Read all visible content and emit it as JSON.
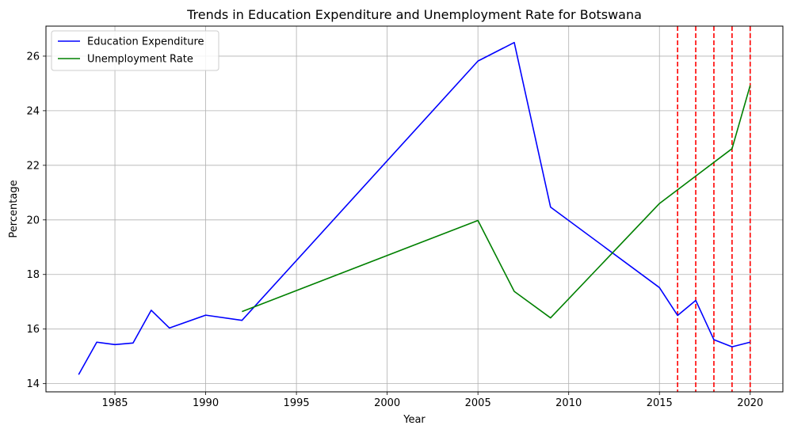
{
  "chart_data": {
    "type": "line",
    "title": "Trends in Education Expenditure and Unemployment Rate for Botswana",
    "xlabel": "Year",
    "ylabel": "Percentage",
    "xlim": [
      1981.2,
      2021.8
    ],
    "ylim": [
      13.7,
      27.1
    ],
    "xticks": [
      1985,
      1990,
      1995,
      2000,
      2005,
      2010,
      2015,
      2020
    ],
    "yticks": [
      14,
      16,
      18,
      20,
      22,
      24,
      26
    ],
    "grid": true,
    "legend_position": "top-left",
    "series": [
      {
        "name": "Education Expenditure",
        "color": "#0000ff",
        "points": [
          [
            1983,
            14.33
          ],
          [
            1984,
            15.52
          ],
          [
            1985,
            15.43
          ],
          [
            1986,
            15.49
          ],
          [
            1987,
            16.69
          ],
          [
            1988,
            16.04
          ],
          [
            1990,
            16.51
          ],
          [
            1992,
            16.32
          ],
          [
            2005,
            25.82
          ],
          [
            2007,
            26.5
          ],
          [
            2009,
            20.47
          ],
          [
            2015,
            17.52
          ],
          [
            2016,
            16.5
          ],
          [
            2017,
            17.05
          ],
          [
            2018,
            15.61
          ],
          [
            2019,
            15.35
          ],
          [
            2020,
            15.52
          ]
        ]
      },
      {
        "name": "Unemployment Rate",
        "color": "#008000",
        "points": [
          [
            1992,
            16.64
          ],
          [
            2005,
            19.98
          ],
          [
            2007,
            17.38
          ],
          [
            2009,
            16.41
          ],
          [
            2015,
            20.6
          ],
          [
            2019,
            22.61
          ],
          [
            2020,
            24.93
          ]
        ]
      }
    ],
    "vlines": {
      "color": "#ff0000",
      "style": "dashed",
      "x": [
        2016,
        2017,
        2018,
        2019,
        2020
      ]
    }
  }
}
